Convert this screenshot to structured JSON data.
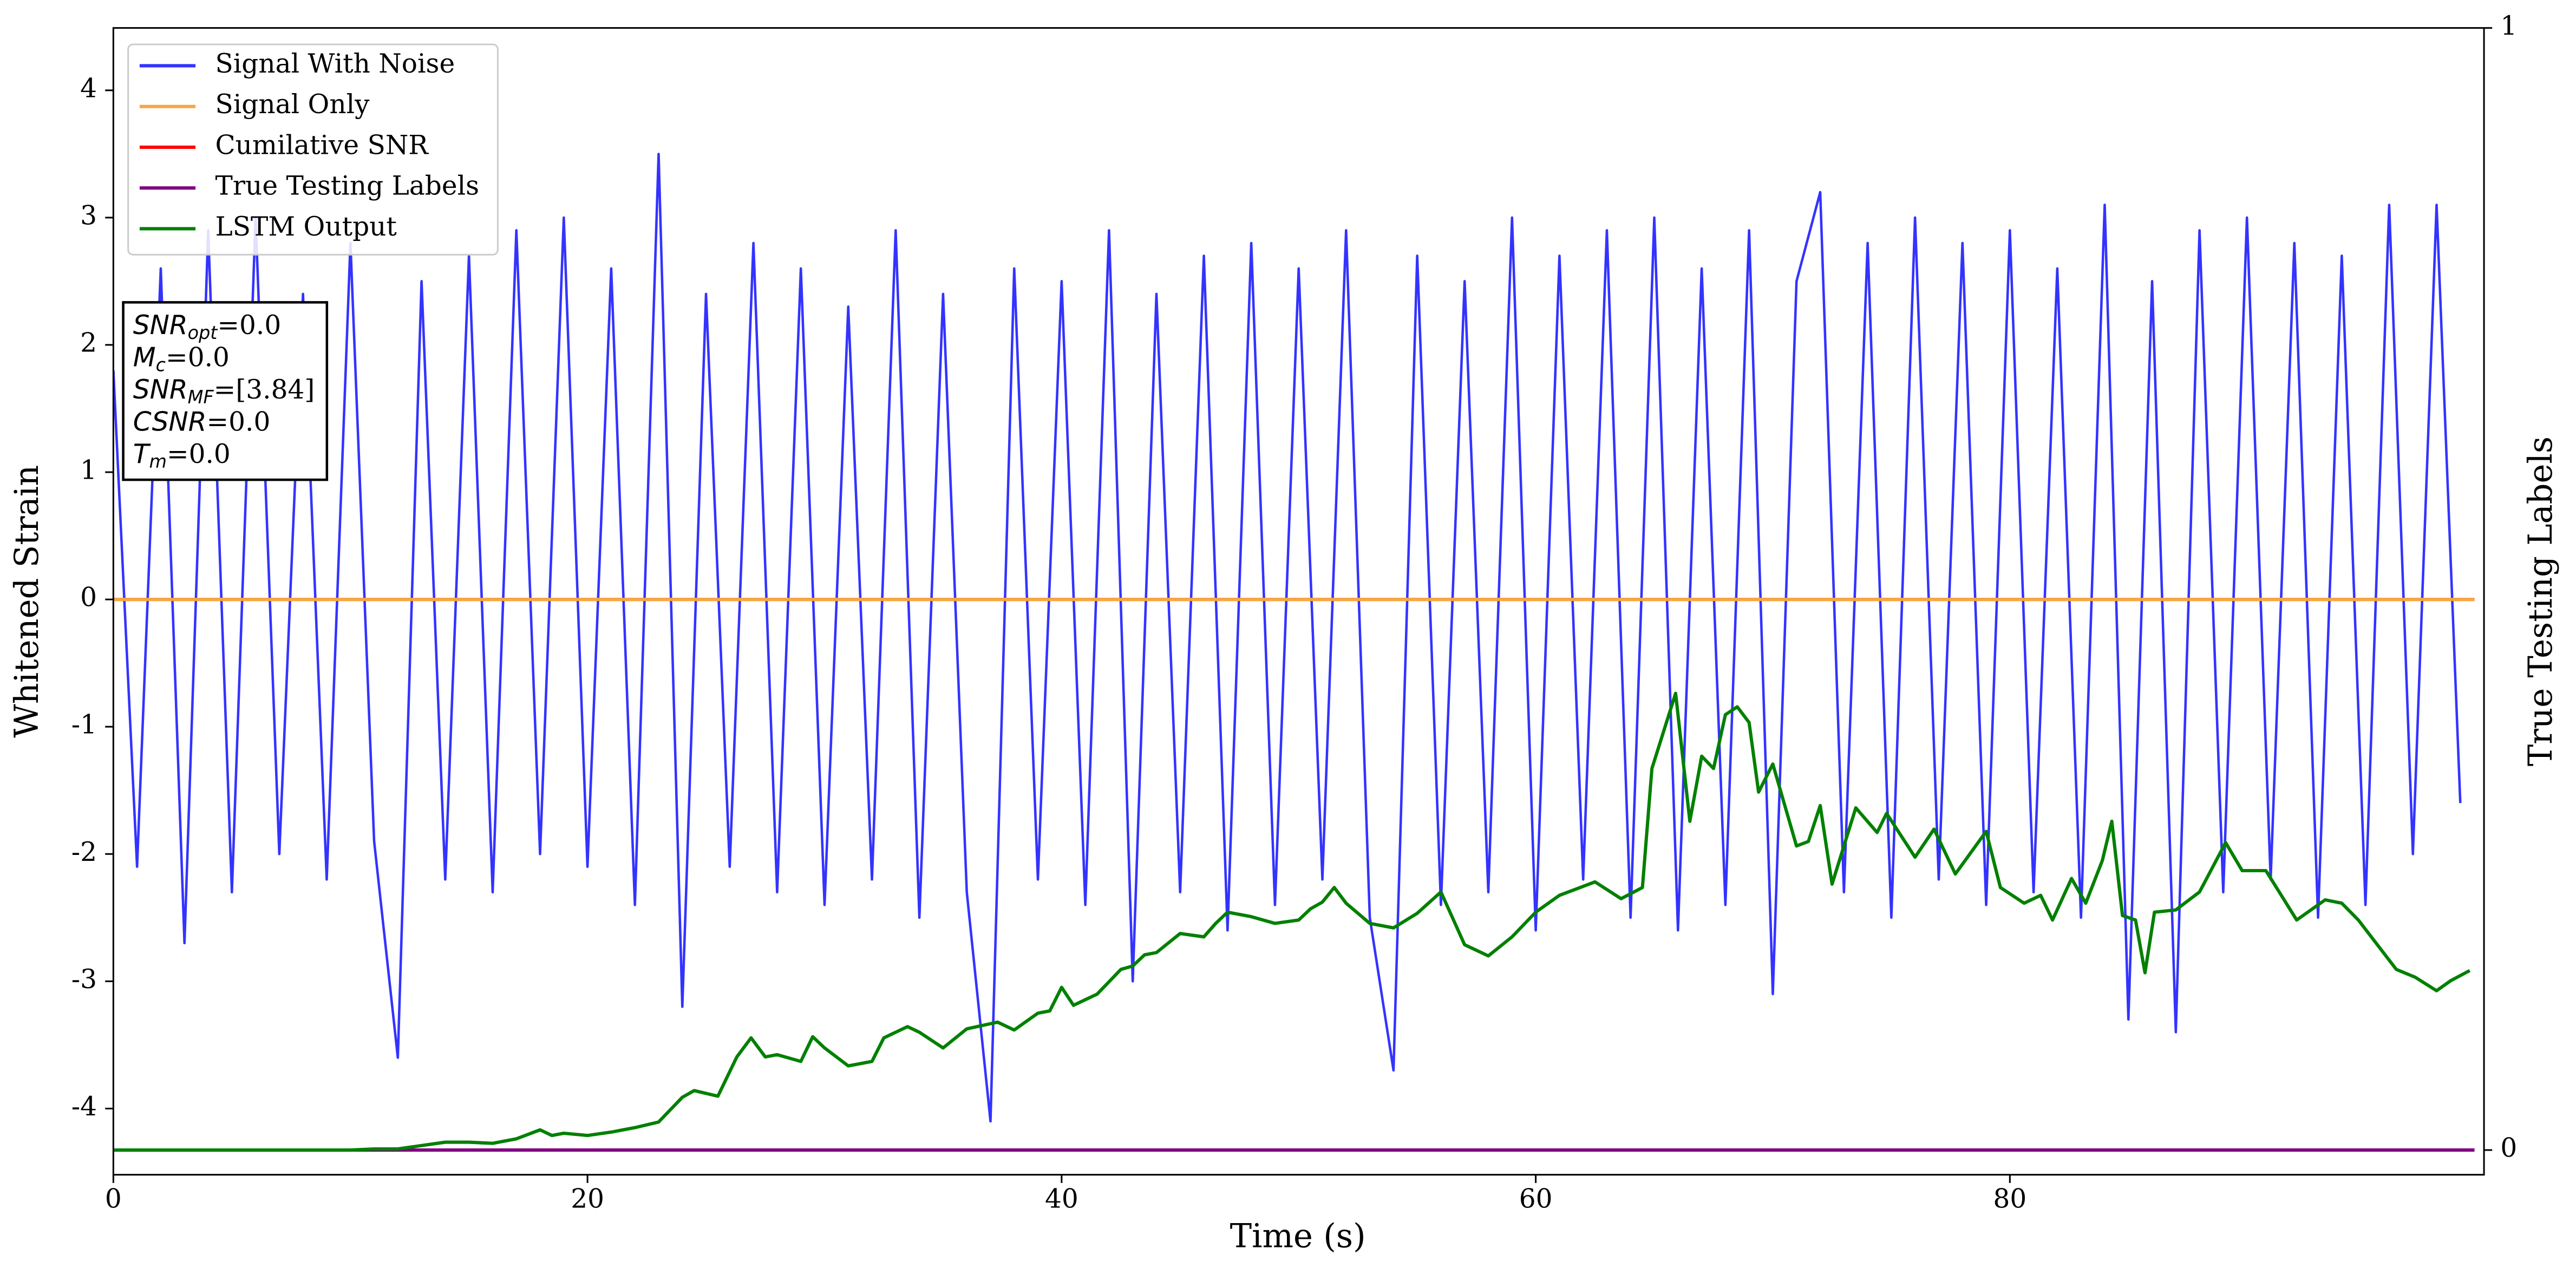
{
  "chart_data": {
    "type": "line",
    "xlabel": "Time (s)",
    "ylabel": "Whitened Strain",
    "y2label": "True Testing Labels",
    "xlim": [
      0,
      100
    ],
    "xticks": [
      0,
      20,
      40,
      60,
      80
    ],
    "ylim": [
      -4.52,
      4.49
    ],
    "yticks": [
      -4,
      -3,
      -2,
      -1,
      0,
      1,
      2,
      3,
      4
    ],
    "y2lim": [
      -0.022,
      1
    ],
    "y2ticks": [
      0,
      1
    ],
    "grid": false,
    "legend": "upper left",
    "series": [
      {
        "name": "Signal With Noise",
        "color": "#3333ff",
        "x": [
          0,
          1,
          2,
          3,
          4,
          5,
          6,
          7,
          8,
          9,
          10,
          11,
          12,
          13,
          14,
          15,
          16,
          17,
          18,
          19,
          20,
          21,
          22,
          23,
          24,
          25,
          26,
          27,
          28,
          29,
          30,
          31,
          32,
          33,
          34,
          35,
          36,
          37,
          38,
          39,
          40,
          41,
          42,
          43,
          44,
          45,
          46,
          47,
          48,
          49,
          50,
          51,
          52,
          53,
          54,
          55,
          56,
          57,
          58,
          59,
          60,
          61,
          62,
          63,
          64,
          65,
          66,
          67,
          68,
          69,
          70,
          71,
          72,
          73,
          74,
          75,
          76,
          77,
          78,
          79,
          80,
          81,
          82,
          83,
          84,
          85,
          86,
          87,
          88,
          89,
          90,
          91,
          92,
          93,
          94,
          95,
          96,
          97,
          98,
          99
        ],
        "values": [
          1.8,
          -2.1,
          2.6,
          -2.7,
          2.9,
          -2.3,
          3.0,
          -2.0,
          2.4,
          -2.2,
          2.8,
          -1.9,
          -3.6,
          2.5,
          -2.2,
          2.7,
          -2.3,
          2.9,
          -2.0,
          3.0,
          -2.1,
          2.6,
          -2.4,
          3.5,
          -3.2,
          2.4,
          -2.1,
          2.8,
          -2.3,
          2.6,
          -2.4,
          2.3,
          -2.2,
          2.9,
          -2.5,
          2.4,
          -2.3,
          -4.1,
          2.6,
          -2.2,
          2.5,
          -2.4,
          2.9,
          -3.0,
          2.4,
          -2.3,
          2.7,
          -2.6,
          2.8,
          -2.4,
          2.6,
          -2.2,
          2.9,
          -2.5,
          -3.7,
          2.7,
          -2.4,
          2.5,
          -2.3,
          3.0,
          -2.6,
          2.7,
          -2.2,
          2.9,
          -2.5,
          3.0,
          -2.6,
          2.6,
          -2.4,
          2.9,
          -3.1,
          2.5,
          3.2,
          -2.3,
          2.8,
          -2.5,
          3.0,
          -2.2,
          2.8,
          -2.4,
          2.9,
          -2.3,
          2.6,
          -2.5,
          3.1,
          -3.3,
          2.5,
          -3.4,
          2.9,
          -2.3,
          3.0,
          -2.2,
          2.8,
          -2.5,
          2.7,
          -2.4,
          3.1,
          -2.0,
          3.1,
          -1.6
        ]
      },
      {
        "name": "Signal Only",
        "color": "#f5a742",
        "x": [
          0,
          99.6
        ],
        "values": [
          0,
          0
        ]
      },
      {
        "name": "Cumilative SNR",
        "color": "#ff0000",
        "x": [
          0,
          99.6
        ],
        "values": [
          0,
          0
        ]
      },
      {
        "name": "True Testing Labels",
        "color": "#800080",
        "axis": "y2",
        "x": [
          0,
          99.6
        ],
        "values": [
          0,
          0
        ]
      },
      {
        "name": "LSTM Output",
        "color": "#008000",
        "axis": "y2",
        "x": [
          0,
          5,
          10,
          11,
          12,
          13,
          14,
          15,
          16,
          17,
          18,
          18.5,
          19,
          20,
          21,
          22,
          23,
          24,
          24.5,
          25.5,
          26.3,
          26.9,
          27.5,
          28,
          29,
          29.5,
          30,
          31,
          32,
          32.5,
          33.5,
          34,
          35,
          36,
          37.3,
          38,
          39,
          39.5,
          40,
          40.5,
          41.5,
          42.5,
          43,
          43.5,
          44,
          45,
          46,
          46.5,
          47,
          48,
          49,
          50,
          50.5,
          51,
          51.5,
          52,
          53,
          54,
          55,
          56,
          57,
          58,
          59,
          60,
          61,
          62.5,
          63.6,
          64.5,
          64.9,
          65.9,
          66.5,
          67,
          67.5,
          68,
          68.5,
          69,
          69.4,
          70,
          71,
          71.5,
          72,
          72.5,
          73.5,
          74.4,
          74.8,
          76,
          76.8,
          77.7,
          79,
          79.6,
          80.6,
          81.3,
          81.8,
          82.6,
          83.2,
          83.9,
          84.3,
          84.75,
          85.3,
          85.7,
          86.1,
          87,
          88,
          89.1,
          89.8,
          90.8,
          92.1,
          93.3,
          94,
          94.7,
          96.3,
          97.1,
          98,
          98.6,
          99.4
        ],
        "values": [
          0,
          0,
          0,
          0.001,
          0.001,
          0.004,
          0.007,
          0.007,
          0.006,
          0.01,
          0.018,
          0.013,
          0.015,
          0.013,
          0.016,
          0.02,
          0.025,
          0.047,
          0.053,
          0.048,
          0.083,
          0.1,
          0.083,
          0.085,
          0.079,
          0.101,
          0.091,
          0.075,
          0.079,
          0.1,
          0.11,
          0.105,
          0.091,
          0.108,
          0.114,
          0.107,
          0.122,
          0.124,
          0.145,
          0.129,
          0.139,
          0.161,
          0.164,
          0.174,
          0.176,
          0.193,
          0.19,
          0.202,
          0.212,
          0.208,
          0.202,
          0.205,
          0.215,
          0.221,
          0.234,
          0.22,
          0.202,
          0.198,
          0.211,
          0.23,
          0.183,
          0.173,
          0.19,
          0.212,
          0.227,
          0.239,
          0.224,
          0.234,
          0.34,
          0.407,
          0.293,
          0.351,
          0.34,
          0.388,
          0.395,
          0.381,
          0.319,
          0.344,
          0.271,
          0.275,
          0.307,
          0.237,
          0.305,
          0.283,
          0.3,
          0.261,
          0.286,
          0.246,
          0.284,
          0.234,
          0.22,
          0.227,
          0.205,
          0.242,
          0.22,
          0.258,
          0.293,
          0.209,
          0.205,
          0.158,
          0.212,
          0.214,
          0.23,
          0.274,
          0.249,
          0.249,
          0.205,
          0.223,
          0.22,
          0.205,
          0.161,
          0.154,
          0.142,
          0.151,
          0.16
        ]
      }
    ],
    "annotations": [
      {
        "symbol": "SNR",
        "subscript": "opt",
        "text": "=0.0"
      },
      {
        "symbol": "M",
        "subscript": "c",
        "text": "=0.0"
      },
      {
        "symbol": "SNR",
        "subscript": "MF",
        "text": "=[3.84]"
      },
      {
        "symbol": "CSNR",
        "text": "=0.0"
      },
      {
        "symbol": "T",
        "subscript": "m",
        "text": "=0.0"
      }
    ]
  }
}
